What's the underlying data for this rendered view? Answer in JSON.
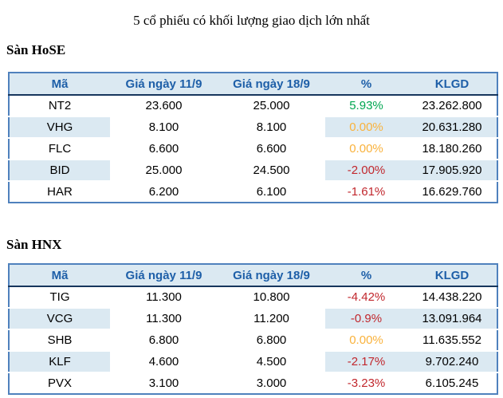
{
  "title": "5 cổ phiếu có khối lượng giao dịch lớn nhất",
  "colors": {
    "positive": "#00a651",
    "zero": "#f9b23c",
    "negative": "#c1272d",
    "header_text": "#1e5fa8",
    "header_bg": "#dbe9f2",
    "stripe_bg": "#dbe9f2",
    "border": "#4f81bd",
    "header_underline": "#17365d"
  },
  "sections": [
    {
      "label": "Sàn HoSE",
      "headers": [
        "Mã",
        "Giá ngày 11/9",
        "Giá ngày 18/9",
        "%",
        "KLGD"
      ],
      "rows": [
        {
          "symbol": "NT2",
          "price_11_9": "23.600",
          "price_18_9": "25.000",
          "percent": "5.93%",
          "trend": "positive",
          "klgd": "23.262.800"
        },
        {
          "symbol": "VHG",
          "price_11_9": "8.100",
          "price_18_9": "8.100",
          "percent": "0.00%",
          "trend": "zero",
          "klgd": "20.631.280"
        },
        {
          "symbol": "FLC",
          "price_11_9": "6.600",
          "price_18_9": "6.600",
          "percent": "0.00%",
          "trend": "zero",
          "klgd": "18.180.260"
        },
        {
          "symbol": "BID",
          "price_11_9": "25.000",
          "price_18_9": "24.500",
          "percent": "-2.00%",
          "trend": "negative",
          "klgd": "17.905.920"
        },
        {
          "symbol": "HAR",
          "price_11_9": "6.200",
          "price_18_9": "6.100",
          "percent": "-1.61%",
          "trend": "negative",
          "klgd": "16.629.760"
        }
      ]
    },
    {
      "label": "Sàn HNX",
      "headers": [
        "Mã",
        "Giá ngày 11/9",
        "Giá ngày 18/9",
        "%",
        "KLGD"
      ],
      "rows": [
        {
          "symbol": "TIG",
          "price_11_9": "11.300",
          "price_18_9": "10.800",
          "percent": "-4.42%",
          "trend": "negative",
          "klgd": "14.438.220"
        },
        {
          "symbol": "VCG",
          "price_11_9": "11.300",
          "price_18_9": "11.200",
          "percent": "-0.9%",
          "trend": "negative",
          "klgd": "13.091.964"
        },
        {
          "symbol": "SHB",
          "price_11_9": "6.800",
          "price_18_9": "6.800",
          "percent": "0.00%",
          "trend": "zero",
          "klgd": "11.635.552"
        },
        {
          "symbol": "KLF",
          "price_11_9": "4.600",
          "price_18_9": "4.500",
          "percent": "-2.17%",
          "trend": "negative",
          "klgd": "9.702.240"
        },
        {
          "symbol": "PVX",
          "price_11_9": "3.100",
          "price_18_9": "3.000",
          "percent": "-3.23%",
          "trend": "negative",
          "klgd": "6.105.245"
        }
      ]
    }
  ]
}
